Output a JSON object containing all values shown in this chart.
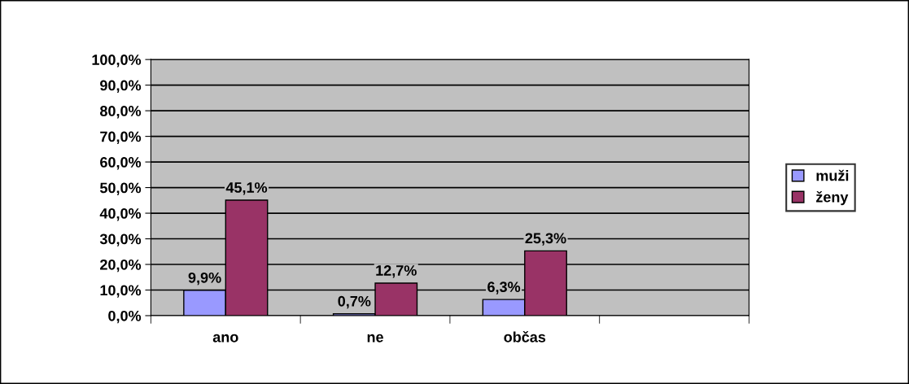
{
  "chart_data": {
    "type": "bar",
    "categories": [
      "ano",
      "ne",
      "občas",
      null
    ],
    "series": [
      {
        "name": "muži",
        "color": "#9999ff",
        "values": [
          9.9,
          0.7,
          6.3,
          null
        ],
        "value_labels": [
          "9,9%",
          "0,7%",
          "6,3%",
          null
        ]
      },
      {
        "name": "ženy",
        "color": "#993366",
        "values": [
          45.1,
          12.7,
          25.3,
          null
        ],
        "value_labels": [
          "45,1%",
          "12,7%",
          "25,3%",
          null
        ]
      }
    ],
    "ylim": [
      0,
      100
    ],
    "yticks": [
      {
        "value": 0,
        "label": "0,0%"
      },
      {
        "value": 10,
        "label": "10,0%"
      },
      {
        "value": 20,
        "label": "20,0%"
      },
      {
        "value": 30,
        "label": "30,0%"
      },
      {
        "value": 40,
        "label": "40,0%"
      },
      {
        "value": 50,
        "label": "50,0%"
      },
      {
        "value": 60,
        "label": "60,0%"
      },
      {
        "value": 70,
        "label": "70,0%"
      },
      {
        "value": 80,
        "label": "80,0%"
      },
      {
        "value": 90,
        "label": "90,0%"
      },
      {
        "value": 100,
        "label": "100,0%"
      }
    ],
    "grid": "y",
    "legend": "right"
  }
}
